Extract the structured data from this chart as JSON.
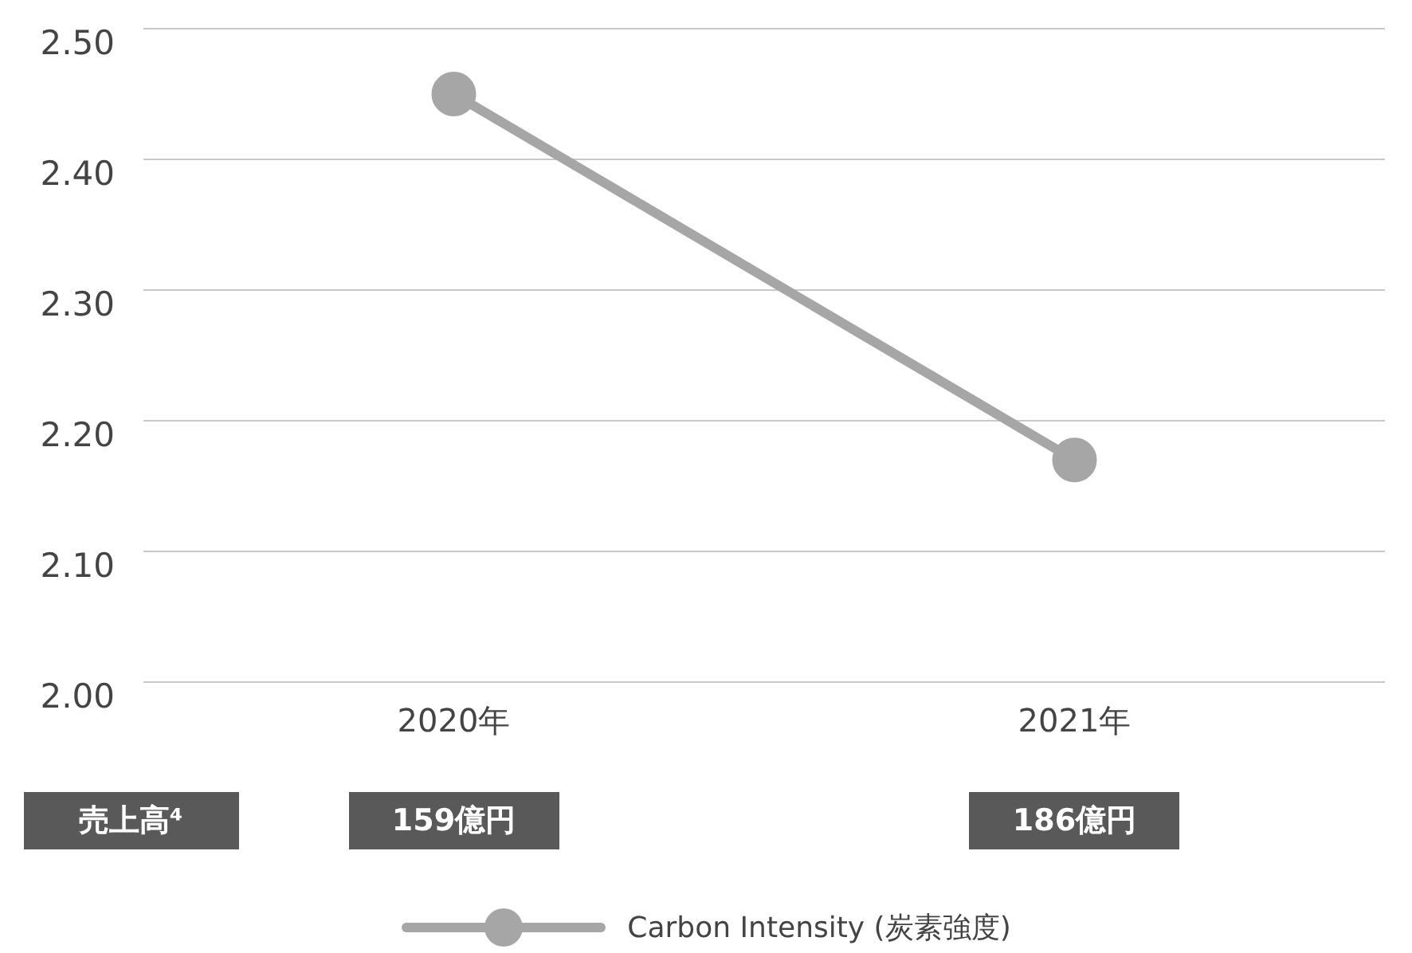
{
  "chart_data": {
    "type": "line",
    "categories": [
      "2020年",
      "2021年"
    ],
    "series": [
      {
        "name": "Carbon Intensity (炭素強度)",
        "color": "#a6a6a6",
        "values": [
          2.45,
          2.17
        ]
      }
    ],
    "ylim": [
      2.0,
      2.5
    ],
    "yticks": [
      {
        "value": 2.0,
        "label": "2.00"
      },
      {
        "value": 2.1,
        "label": "2.10"
      },
      {
        "value": 2.2,
        "label": "2.20"
      },
      {
        "value": 2.3,
        "label": "2.30"
      },
      {
        "value": 2.4,
        "label": "2.40"
      },
      {
        "value": 2.5,
        "label": "2.50"
      }
    ],
    "grid": "y",
    "legend": "bottom",
    "marker": "circle",
    "line_style": "solid",
    "annotations": [
      "売上高⁴",
      "159億円",
      "186億円"
    ]
  }
}
